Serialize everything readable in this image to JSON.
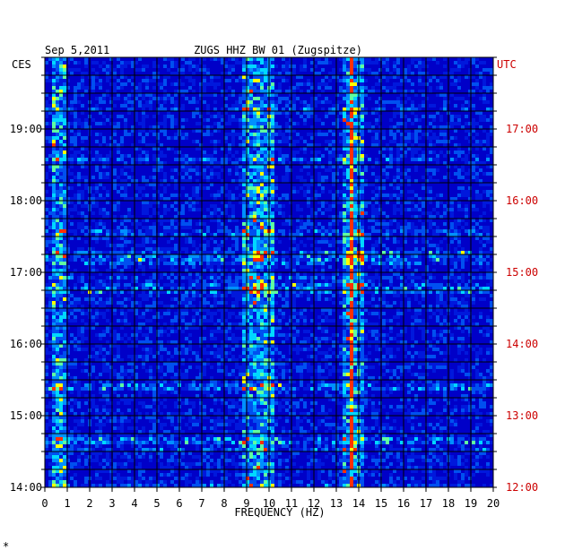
{
  "chart_data": {
    "type": "heatmap",
    "date": "Sep 5,2011",
    "title": "ZUGS HHZ BW 01 (Zugspitze)",
    "xlabel": "FREQUENCY (HZ)",
    "x_ticks": [
      "0",
      "1",
      "2",
      "3",
      "4",
      "5",
      "6",
      "7",
      "8",
      "9",
      "10",
      "11",
      "12",
      "13",
      "14",
      "15",
      "16",
      "17",
      "18",
      "19",
      "20"
    ],
    "xlim": [
      0,
      20
    ],
    "left_axis_label": "CES",
    "right_axis_label": "UTC",
    "left_ticks": [
      "14:00",
      "15:00",
      "16:00",
      "17:00",
      "18:00",
      "19:00"
    ],
    "right_ticks": [
      "12:00",
      "13:00",
      "14:00",
      "15:00",
      "16:00",
      "17:00"
    ],
    "colors": {
      "background": "#0000c8",
      "low": "#0010d0",
      "mid": "#00c8ff",
      "high": "#ffff00",
      "peak": "#ff0000",
      "utc_text": "#cc0000"
    },
    "features": {
      "persistent_line_hz": 13.6,
      "active_bands_hz": [
        [
          0.2,
          0.8
        ],
        [
          8.8,
          10.2
        ],
        [
          13.2,
          14.2
        ]
      ],
      "bright_rows_ces": [
        "17:15",
        "16:48",
        "15:25",
        "14:40"
      ]
    },
    "footer_mark": "*"
  }
}
